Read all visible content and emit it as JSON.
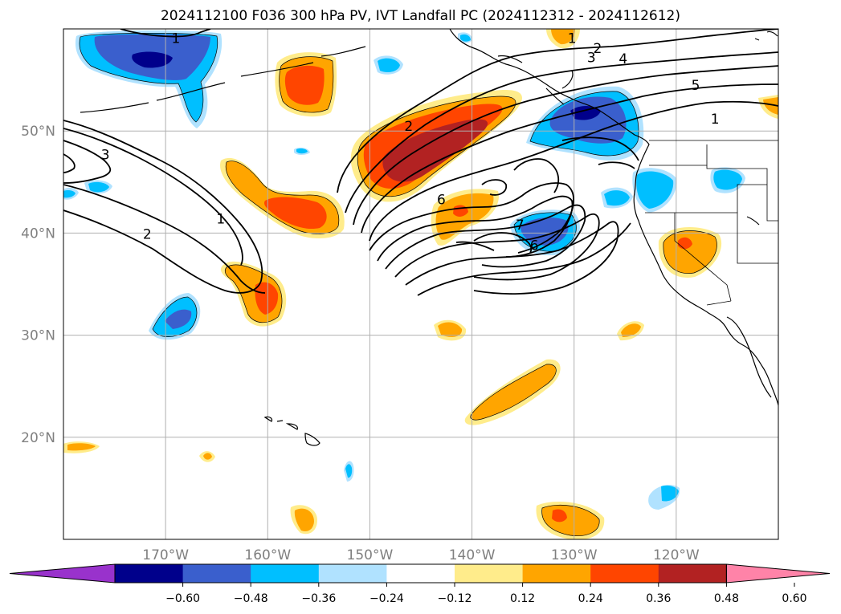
{
  "title": "2024112100 F036 300 hPa PV, IVT Landfall PC (2024112312 - 2024112612)",
  "map": {
    "lon_range": [
      -180,
      -110
    ],
    "lat_range": [
      10,
      60
    ],
    "lat_ticks": [
      {
        "value": 20,
        "label": "20°N"
      },
      {
        "value": 30,
        "label": "30°N"
      },
      {
        "value": 40,
        "label": "40°N"
      },
      {
        "value": 50,
        "label": "50°N"
      }
    ],
    "lon_ticks": [
      {
        "value": -170,
        "label": "170°W"
      },
      {
        "value": -160,
        "label": "160°W"
      },
      {
        "value": -150,
        "label": "150°W"
      },
      {
        "value": -140,
        "label": "140°W"
      },
      {
        "value": -130,
        "label": "130°W"
      },
      {
        "value": -120,
        "label": "120°W"
      }
    ],
    "grid": true,
    "tick_label_color": "#808080"
  },
  "contour_labels": [
    {
      "text": "1",
      "lon": -169,
      "lat": 59.1
    },
    {
      "text": "1",
      "lon": -164.6,
      "lat": 41.4
    },
    {
      "text": "2",
      "lon": -171.8,
      "lat": 39.9
    },
    {
      "text": "3",
      "lon": -175.9,
      "lat": 47.7
    },
    {
      "text": "1",
      "lon": -130.2,
      "lat": 59.1
    },
    {
      "text": "2",
      "lon": -127.7,
      "lat": 58.1
    },
    {
      "text": "3",
      "lon": -128.3,
      "lat": 57.2
    },
    {
      "text": "4",
      "lon": -125.2,
      "lat": 57.1
    },
    {
      "text": "5",
      "lon": -118.1,
      "lat": 54.5
    },
    {
      "text": "1",
      "lon": -116.2,
      "lat": 51.2
    },
    {
      "text": "2",
      "lon": -146.2,
      "lat": 50.5
    },
    {
      "text": "6",
      "lon": -143,
      "lat": 43.3
    },
    {
      "text": "7",
      "lon": -135.3,
      "lat": 40.8
    },
    {
      "text": "6",
      "lon": -133.9,
      "lat": 38.8
    }
  ],
  "colorbar": {
    "colors": [
      "#9932cc",
      "#00008b",
      "#3a5fcd",
      "#00bfff",
      "#b0e2ff",
      "#ffffff",
      "#ffec8b",
      "#ffa500",
      "#ff4500",
      "#b22222",
      "#ff83a8"
    ],
    "tick_labels": [
      "−0.60",
      "−0.48",
      "−0.36",
      "−0.24",
      "−0.12",
      "0.12",
      "0.24",
      "0.36",
      "0.48",
      "0.60"
    ],
    "tick_values": [
      -0.6,
      -0.48,
      -0.36,
      -0.24,
      -0.12,
      0.12,
      0.24,
      0.36,
      0.48,
      0.6
    ]
  }
}
